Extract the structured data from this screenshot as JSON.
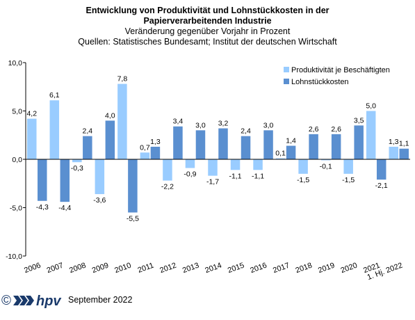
{
  "chart_data": {
    "type": "bar",
    "title_lines": [
      "Entwicklung von Produktivität und Lohnstückkosten  in der",
      "Papierverarbeitenden Industrie"
    ],
    "subtitle_lines": [
      "Veränderung  gegenüber  Vorjahr  in Prozent",
      "Quellen:  Statistisches Bundesamt; Institut der deutschen Wirtschaft"
    ],
    "categories": [
      "2006",
      "2007",
      "2008",
      "2009",
      "2010",
      "2011",
      "2012",
      "2013",
      "2014",
      "2015",
      "2016",
      "2017",
      "2018",
      "2019",
      "2020",
      "2021",
      "1. Hj. 2022"
    ],
    "series": [
      {
        "name": "Produktivität je Beschäftigten",
        "color": "#99ccff",
        "values": [
          4.2,
          6.1,
          -0.3,
          -3.6,
          7.8,
          0.7,
          -2.2,
          -0.9,
          -1.7,
          -1.1,
          -1.1,
          0.1,
          -1.5,
          -0.1,
          -1.5,
          5.0,
          1.3
        ],
        "labels": [
          "4,2",
          "6,1",
          "-0,3",
          "-3,6",
          "7,8",
          "0,7",
          "-2,2",
          "-0,9",
          "-1,7",
          "-1,1",
          "-1,1",
          "0,1",
          "-1,5",
          "-0,1",
          "-1,5",
          "5,0",
          "1,3"
        ]
      },
      {
        "name": "Lohnstückkosten",
        "color": "#5a8fd0",
        "values": [
          -4.3,
          -4.4,
          2.4,
          4.0,
          -5.5,
          1.3,
          3.4,
          3.0,
          3.2,
          2.4,
          3.0,
          1.4,
          2.6,
          2.6,
          3.5,
          -2.1,
          1.1
        ],
        "labels": [
          "-4,3",
          "-4,4",
          "2,4",
          "4,0",
          "-5,5",
          "1,3",
          "3,4",
          "3,0",
          "3,2",
          "2,4",
          "3,0",
          "1,4",
          "2,6",
          "2,6",
          "3,5",
          "-2,1",
          "1,1"
        ]
      }
    ],
    "yticks": [
      10,
      5,
      0,
      -5,
      -10
    ],
    "ytick_labels": [
      "10,0",
      "5,0",
      "0,0",
      "-5,0",
      "-10,0"
    ],
    "ylim": [
      -10,
      10
    ],
    "legend_position": "top-right"
  },
  "footer": {
    "copyright_symbol": "©",
    "brand": "hpv",
    "date": "September 2022",
    "brand_color": "#1a3a6b"
  }
}
